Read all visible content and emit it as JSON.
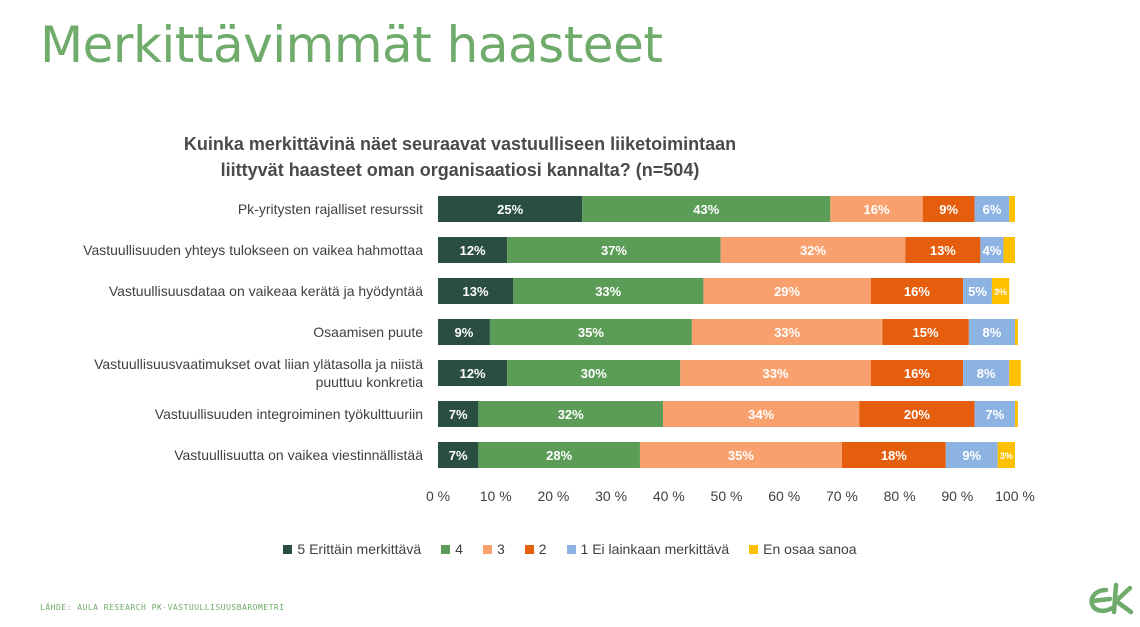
{
  "page_title": "Merkittävimmät haasteet",
  "source": "LÄHDE: AULA RESEARCH PK-VASTUULLISUUSBAROMETRI",
  "logo_name": "ek-logo",
  "colors": {
    "accent": "#6fab6a"
  },
  "chart_data": {
    "type": "bar",
    "orientation": "horizontal",
    "stacked": "percent",
    "title": "Kuinka merkittävinä näet seuraavat vastuulliseen liiketoimintaan liittyvät haasteet oman organisaatiosi kannalta? (n=504)",
    "title_lines": [
      "Kuinka merkittävinä näet seuraavat vastuulliseen liiketoimintaan",
      "liittyvät haasteet oman organisaatiosi kannalta? (n=504)"
    ],
    "categories": [
      "Pk-yritysten rajalliset resurssit",
      "Vastuullisuuden yhteys tulokseen on vaikea hahmottaa",
      "Vastuullisuusdataa on vaikeaa kerätä ja hyödyntää",
      "Osaamisen puute",
      "Vastuullisuusvaatimukset ovat liian ylätasolla ja niistä puuttuu konkretia",
      "Vastuullisuuden integroiminen työkulttuuriin",
      "Vastuullisuutta on vaikea viestinnällistää"
    ],
    "series": [
      {
        "name": "5 Erittäin merkittävä",
        "color": "#2a4e40",
        "values": [
          25,
          12,
          13,
          9,
          12,
          7,
          7
        ]
      },
      {
        "name": "4",
        "color": "#5b9c57",
        "values": [
          43,
          37,
          33,
          35,
          30,
          32,
          28
        ]
      },
      {
        "name": "3",
        "color": "#f9a06f",
        "values": [
          16,
          32,
          29,
          33,
          33,
          34,
          35
        ]
      },
      {
        "name": "2",
        "color": "#e45e0e",
        "values": [
          9,
          13,
          16,
          15,
          16,
          20,
          18
        ]
      },
      {
        "name": "1 Ei lainkaan merkittävä",
        "color": "#8db3e2",
        "values": [
          6,
          4,
          5,
          8,
          8,
          7,
          9
        ]
      },
      {
        "name": "En osaa sanoa",
        "color": "#ffc000",
        "values": [
          1,
          2,
          3,
          0.5,
          2,
          0.5,
          3
        ]
      }
    ],
    "data_labels": [
      [
        "25%",
        "43%",
        "16%",
        "9%",
        "6%",
        ""
      ],
      [
        "12%",
        "37%",
        "32%",
        "13%",
        "4%",
        ""
      ],
      [
        "13%",
        "33%",
        "29%",
        "16%",
        "5%",
        "3%"
      ],
      [
        "9%",
        "35%",
        "33%",
        "15%",
        "8%",
        ""
      ],
      [
        "12%",
        "30%",
        "33%",
        "16%",
        "8%",
        ""
      ],
      [
        "7%",
        "32%",
        "34%",
        "20%",
        "7%",
        ""
      ],
      [
        "7%",
        "28%",
        "35%",
        "18%",
        "9%",
        "3%"
      ]
    ],
    "xlim": [
      0,
      100
    ],
    "xticks": [
      "0 %",
      "10 %",
      "20 %",
      "30 %",
      "40 %",
      "50 %",
      "60 %",
      "70 %",
      "80 %",
      "90 %",
      "100 %"
    ],
    "grid": false,
    "legend_position": "bottom"
  }
}
